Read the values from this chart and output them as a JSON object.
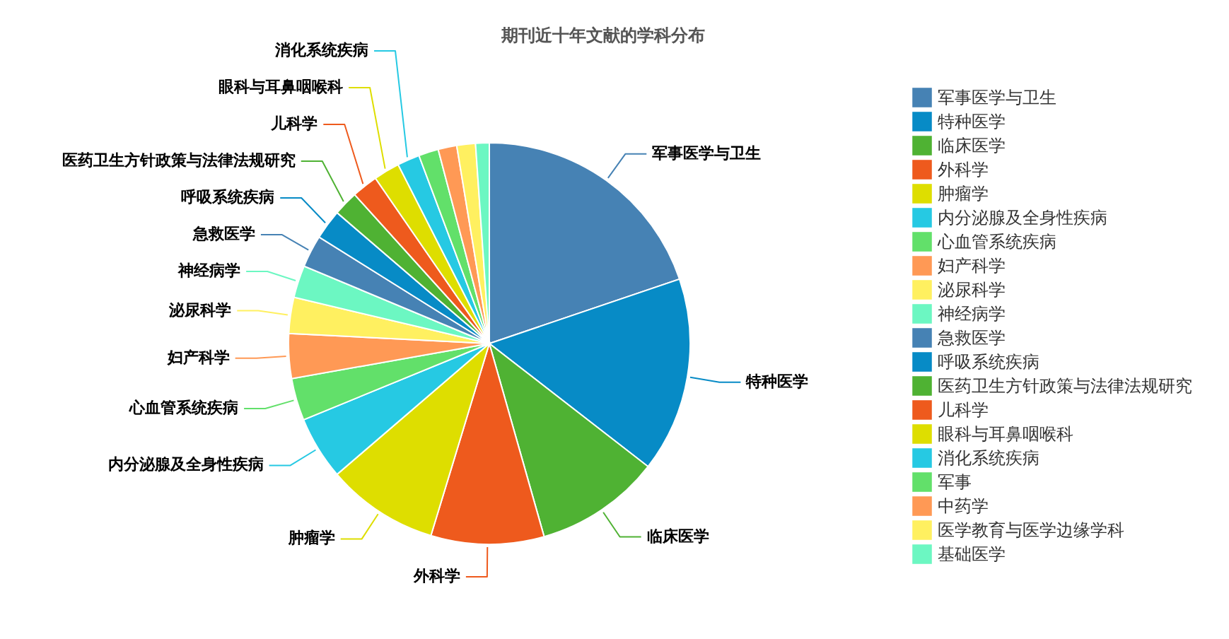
{
  "chart_data": {
    "type": "pie",
    "title": "期刊近十年文献的学科分布",
    "categories": [
      "军事医学与卫生",
      "特种医学",
      "临床医学",
      "外科学",
      "肿瘤学",
      "内分泌腺及全身性疾病",
      "心血管系统疾病",
      "妇产科学",
      "泌尿科学",
      "神经病学",
      "急救医学",
      "呼吸系统疾病",
      "医药卫生方针政策与法律法规研究",
      "儿科学",
      "眼科与耳鼻咽喉科",
      "消化系统疾病",
      "军事",
      "中药学",
      "医学教育与医学边缘学科",
      "基础医学"
    ],
    "values": [
      19.8,
      15.7,
      10.1,
      9.1,
      9.0,
      5.1,
      3.4,
      3.6,
      2.9,
      2.6,
      2.6,
      2.4,
      2.0,
      2.1,
      2.1,
      1.8,
      1.6,
      1.5,
      1.5,
      1.1
    ],
    "colors": [
      "#4682b4",
      "#078bc6",
      "#4fb233",
      "#ee5a1d",
      "#dede00",
      "#26c9e3",
      "#62e06a",
      "#ff9955",
      "#fff060",
      "#6cf7c2",
      "#4682b4",
      "#078bc6",
      "#4fb233",
      "#ee5a1d",
      "#dede00",
      "#26c9e3",
      "#62e06a",
      "#ff9955",
      "#fff060",
      "#6cf7c2"
    ],
    "legend": "right"
  }
}
